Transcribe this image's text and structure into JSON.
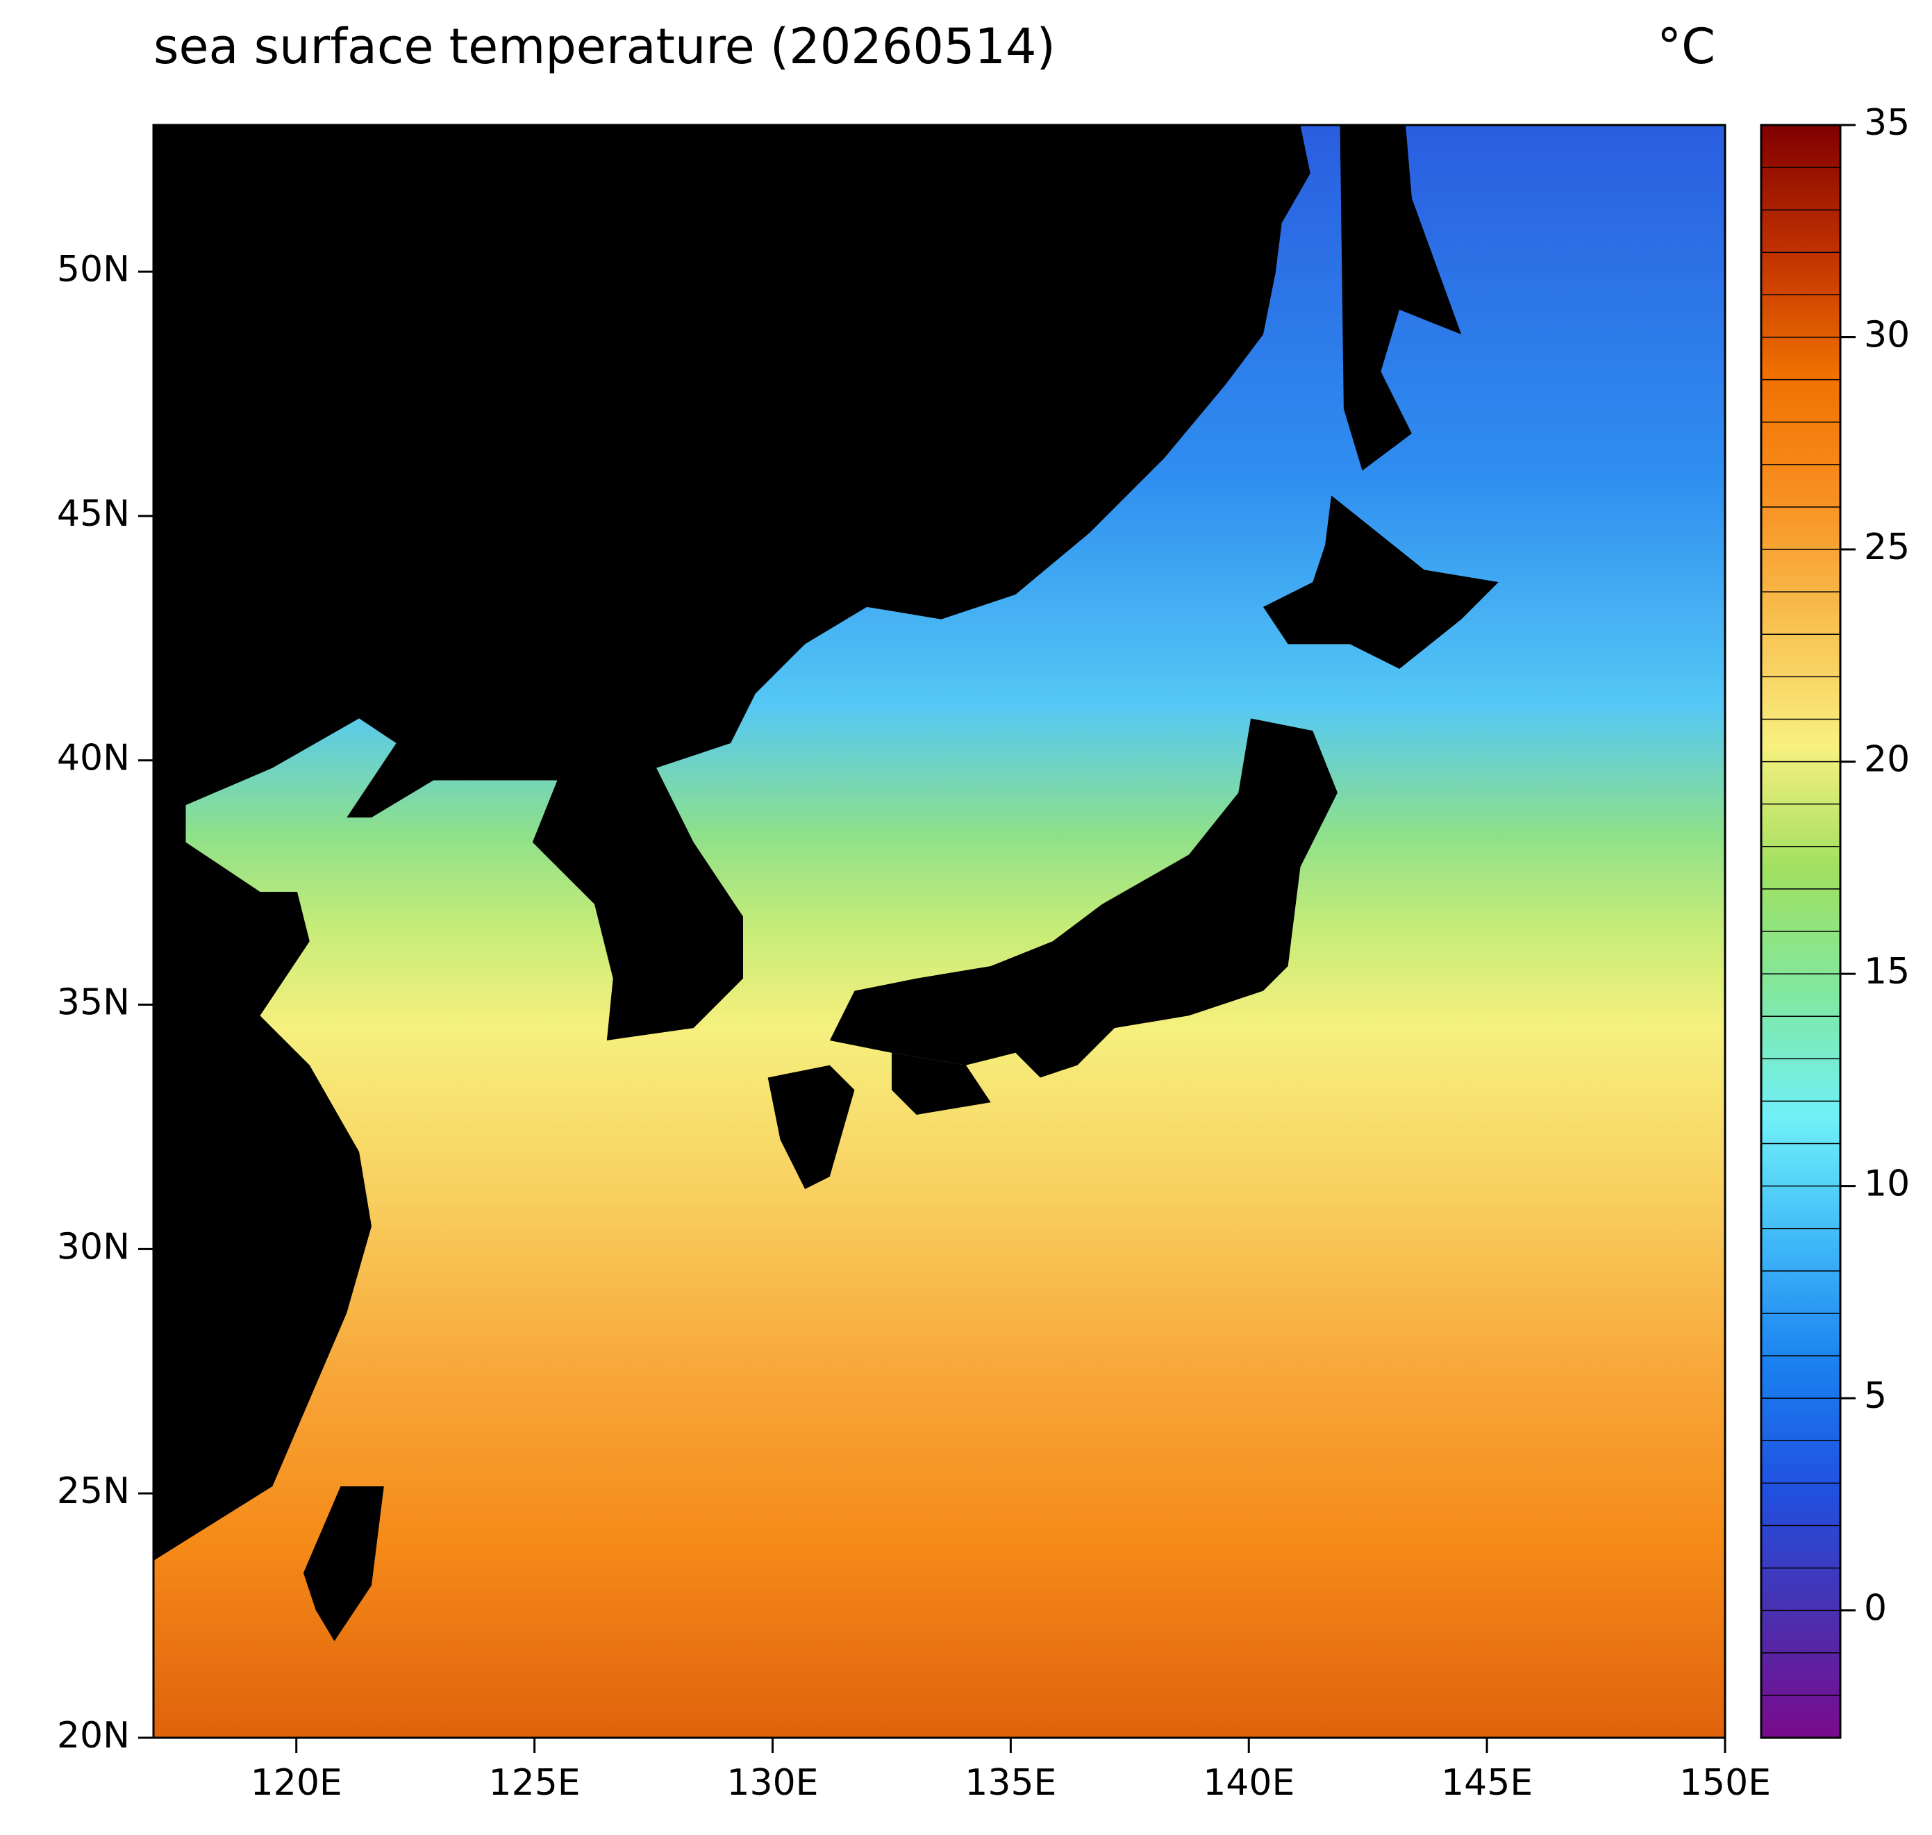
{
  "chart_data": {
    "type": "map",
    "title": "sea surface temperature (20260514)",
    "unit": "°C",
    "xlim": [
      117,
      150
    ],
    "ylim": [
      20,
      53
    ],
    "xticks": [
      {
        "value": 120,
        "label": "120E"
      },
      {
        "value": 125,
        "label": "125E"
      },
      {
        "value": 130,
        "label": "130E"
      },
      {
        "value": 135,
        "label": "135E"
      },
      {
        "value": 140,
        "label": "140E"
      },
      {
        "value": 145,
        "label": "145E"
      },
      {
        "value": 150,
        "label": "150E"
      }
    ],
    "yticks": [
      {
        "value": 20,
        "label": "20N"
      },
      {
        "value": 25,
        "label": "25N"
      },
      {
        "value": 30,
        "label": "30N"
      },
      {
        "value": 35,
        "label": "35N"
      },
      {
        "value": 40,
        "label": "40N"
      },
      {
        "value": 45,
        "label": "45N"
      },
      {
        "value": 50,
        "label": "50N"
      }
    ],
    "colorbar": {
      "lim": [
        -3,
        35
      ],
      "ticks": [
        0,
        5,
        10,
        15,
        20,
        25,
        30,
        35
      ],
      "step": 1,
      "colors": [
        "#7a0a8c",
        "#4a30b0",
        "#2050e0",
        "#1a80f0",
        "#40b8f8",
        "#70f0f8",
        "#80e8a0",
        "#a0e060",
        "#f8f080",
        "#f8c050",
        "#f89020",
        "#f07000",
        "#c03000",
        "#800000"
      ]
    }
  }
}
